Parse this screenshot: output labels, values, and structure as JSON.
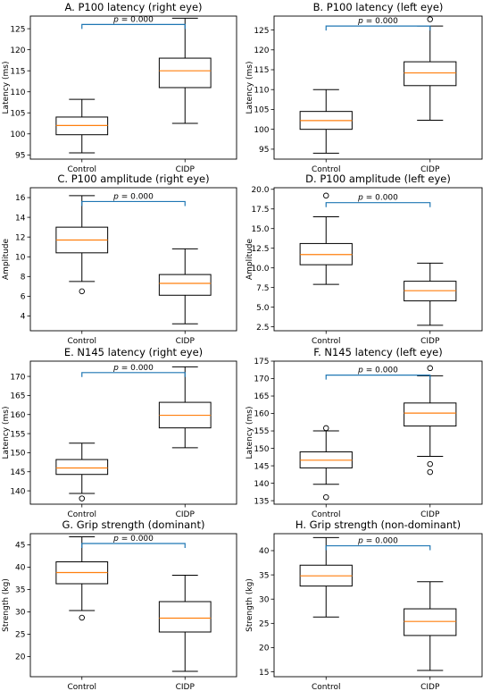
{
  "chart_data": [
    {
      "type": "box",
      "title": "A. P100 latency (right eye)",
      "ylabel": "Latency (ms)",
      "categories": [
        "Control",
        "CIDP"
      ],
      "ylim": [
        94,
        128
      ],
      "yticks": [
        95,
        100,
        105,
        110,
        115,
        120,
        125
      ],
      "boxes": [
        {
          "whisker_low": 95.5,
          "q1": 99.8,
          "median": 102.0,
          "q3": 104.0,
          "whisker_high": 108.2,
          "outliers": []
        },
        {
          "whisker_low": 102.5,
          "q1": 111.0,
          "median": 115.0,
          "q3": 118.0,
          "whisker_high": 127.5,
          "outliers": []
        }
      ],
      "annotation": {
        "prefix": "p",
        "text": " = 0.000",
        "y": 126
      }
    },
    {
      "type": "box",
      "title": "B. P100 latency (left eye)",
      "ylabel": "Latency (ms)",
      "categories": [
        "Control",
        "CIDP"
      ],
      "ylim": [
        92.5,
        128.5
      ],
      "yticks": [
        95,
        100,
        105,
        110,
        115,
        120,
        125
      ],
      "boxes": [
        {
          "whisker_low": 94.0,
          "q1": 100.0,
          "median": 102.2,
          "q3": 104.5,
          "whisker_high": 110.0,
          "outliers": []
        },
        {
          "whisker_low": 102.3,
          "q1": 111.0,
          "median": 114.2,
          "q3": 117.0,
          "whisker_high": 126.0,
          "outliers": [
            127.7
          ]
        }
      ],
      "annotation": {
        "prefix": "p",
        "text": " = 0.000",
        "y": 126
      }
    },
    {
      "type": "box",
      "title": "C. P100 amplitude (right eye)",
      "ylabel": "Amplitude",
      "categories": [
        "Control",
        "CIDP"
      ],
      "ylim": [
        2.5,
        17.0
      ],
      "yticks": [
        4,
        6,
        8,
        10,
        12,
        14,
        16
      ],
      "boxes": [
        {
          "whisker_low": 7.5,
          "q1": 10.4,
          "median": 11.7,
          "q3": 13.0,
          "whisker_high": 16.2,
          "outliers": [
            6.5
          ]
        },
        {
          "whisker_low": 3.2,
          "q1": 6.1,
          "median": 7.3,
          "q3": 8.2,
          "whisker_high": 10.8,
          "outliers": []
        }
      ],
      "annotation": {
        "prefix": "p",
        "text": " = 0.000",
        "y": 15.6
      }
    },
    {
      "type": "box",
      "title": "D. P100 amplitude (left eye)",
      "ylabel": "Amplitude",
      "categories": [
        "Control",
        "CIDP"
      ],
      "ylim": [
        2.0,
        20.2
      ],
      "yticks": [
        2.5,
        5.0,
        7.5,
        10.0,
        12.5,
        15.0,
        17.5,
        20.0
      ],
      "ytick_labels": [
        "2.5",
        "5.0",
        "7.5",
        "10.0",
        "12.5",
        "15.0",
        "17.5",
        "20.0"
      ],
      "boxes": [
        {
          "whisker_low": 7.9,
          "q1": 10.4,
          "median": 11.7,
          "q3": 13.1,
          "whisker_high": 16.5,
          "outliers": [
            19.2
          ]
        },
        {
          "whisker_low": 2.7,
          "q1": 5.8,
          "median": 7.1,
          "q3": 8.3,
          "whisker_high": 10.6,
          "outliers": []
        }
      ],
      "annotation": {
        "prefix": "p",
        "text": " = 0.000",
        "y": 18.3
      }
    },
    {
      "type": "box",
      "title": "E. N145 latency (right eye)",
      "ylabel": "Latency (ms)",
      "categories": [
        "Control",
        "CIDP"
      ],
      "ylim": [
        136.5,
        174.0
      ],
      "yticks": [
        140,
        145,
        150,
        155,
        160,
        165,
        170
      ],
      "boxes": [
        {
          "whisker_low": 139.3,
          "q1": 144.3,
          "median": 146.0,
          "q3": 148.2,
          "whisker_high": 152.5,
          "outliers": [
            138.0
          ]
        },
        {
          "whisker_low": 151.3,
          "q1": 156.5,
          "median": 159.8,
          "q3": 163.2,
          "whisker_high": 172.5,
          "outliers": []
        }
      ],
      "annotation": {
        "prefix": "p",
        "text": " = 0.000",
        "y": 171
      }
    },
    {
      "type": "box",
      "title": "F. N145 latency (left eye)",
      "ylabel": "Latency (ms)",
      "categories": [
        "Control",
        "CIDP"
      ],
      "ylim": [
        134.0,
        175.0
      ],
      "yticks": [
        135,
        140,
        145,
        150,
        155,
        160,
        165,
        170,
        175
      ],
      "boxes": [
        {
          "whisker_low": 139.7,
          "q1": 144.4,
          "median": 146.6,
          "q3": 149.0,
          "whisker_high": 155.0,
          "outliers": [
            155.8,
            136.0
          ]
        },
        {
          "whisker_low": 147.7,
          "q1": 156.4,
          "median": 160.1,
          "q3": 163.0,
          "whisker_high": 170.8,
          "outliers": [
            173.0,
            145.5,
            143.2
          ]
        }
      ],
      "annotation": {
        "prefix": "p",
        "text": " = 0.000",
        "y": 171
      }
    },
    {
      "type": "box",
      "title": "G. Grip strength (dominant)",
      "ylabel": "Strength (kg)",
      "categories": [
        "Control",
        "CIDP"
      ],
      "ylim": [
        15.5,
        47.5
      ],
      "yticks": [
        20,
        25,
        30,
        35,
        40,
        45
      ],
      "boxes": [
        {
          "whisker_low": 30.3,
          "q1": 36.3,
          "median": 38.8,
          "q3": 41.2,
          "whisker_high": 46.8,
          "outliers": [
            28.7
          ]
        },
        {
          "whisker_low": 16.7,
          "q1": 25.5,
          "median": 28.6,
          "q3": 32.3,
          "whisker_high": 38.2,
          "outliers": []
        }
      ],
      "annotation": {
        "prefix": "p",
        "text": " = 0.000",
        "y": 45.3
      }
    },
    {
      "type": "box",
      "title": "H. Grip strength (non-dominant)",
      "ylabel": "Strength (kg)",
      "categories": [
        "Control",
        "CIDP"
      ],
      "ylim": [
        14.0,
        43.5
      ],
      "yticks": [
        15,
        20,
        25,
        30,
        35,
        40
      ],
      "boxes": [
        {
          "whisker_low": 26.3,
          "q1": 32.7,
          "median": 34.8,
          "q3": 37.0,
          "whisker_high": 42.7,
          "outliers": []
        },
        {
          "whisker_low": 15.3,
          "q1": 22.5,
          "median": 25.4,
          "q3": 28.0,
          "whisker_high": 33.6,
          "outliers": []
        }
      ],
      "annotation": {
        "prefix": "p",
        "text": " = 0.000",
        "y": 41
      }
    }
  ],
  "colors": {
    "median": "#ff7f0e",
    "bracket": "#1f77b4",
    "axes": "#000000"
  }
}
